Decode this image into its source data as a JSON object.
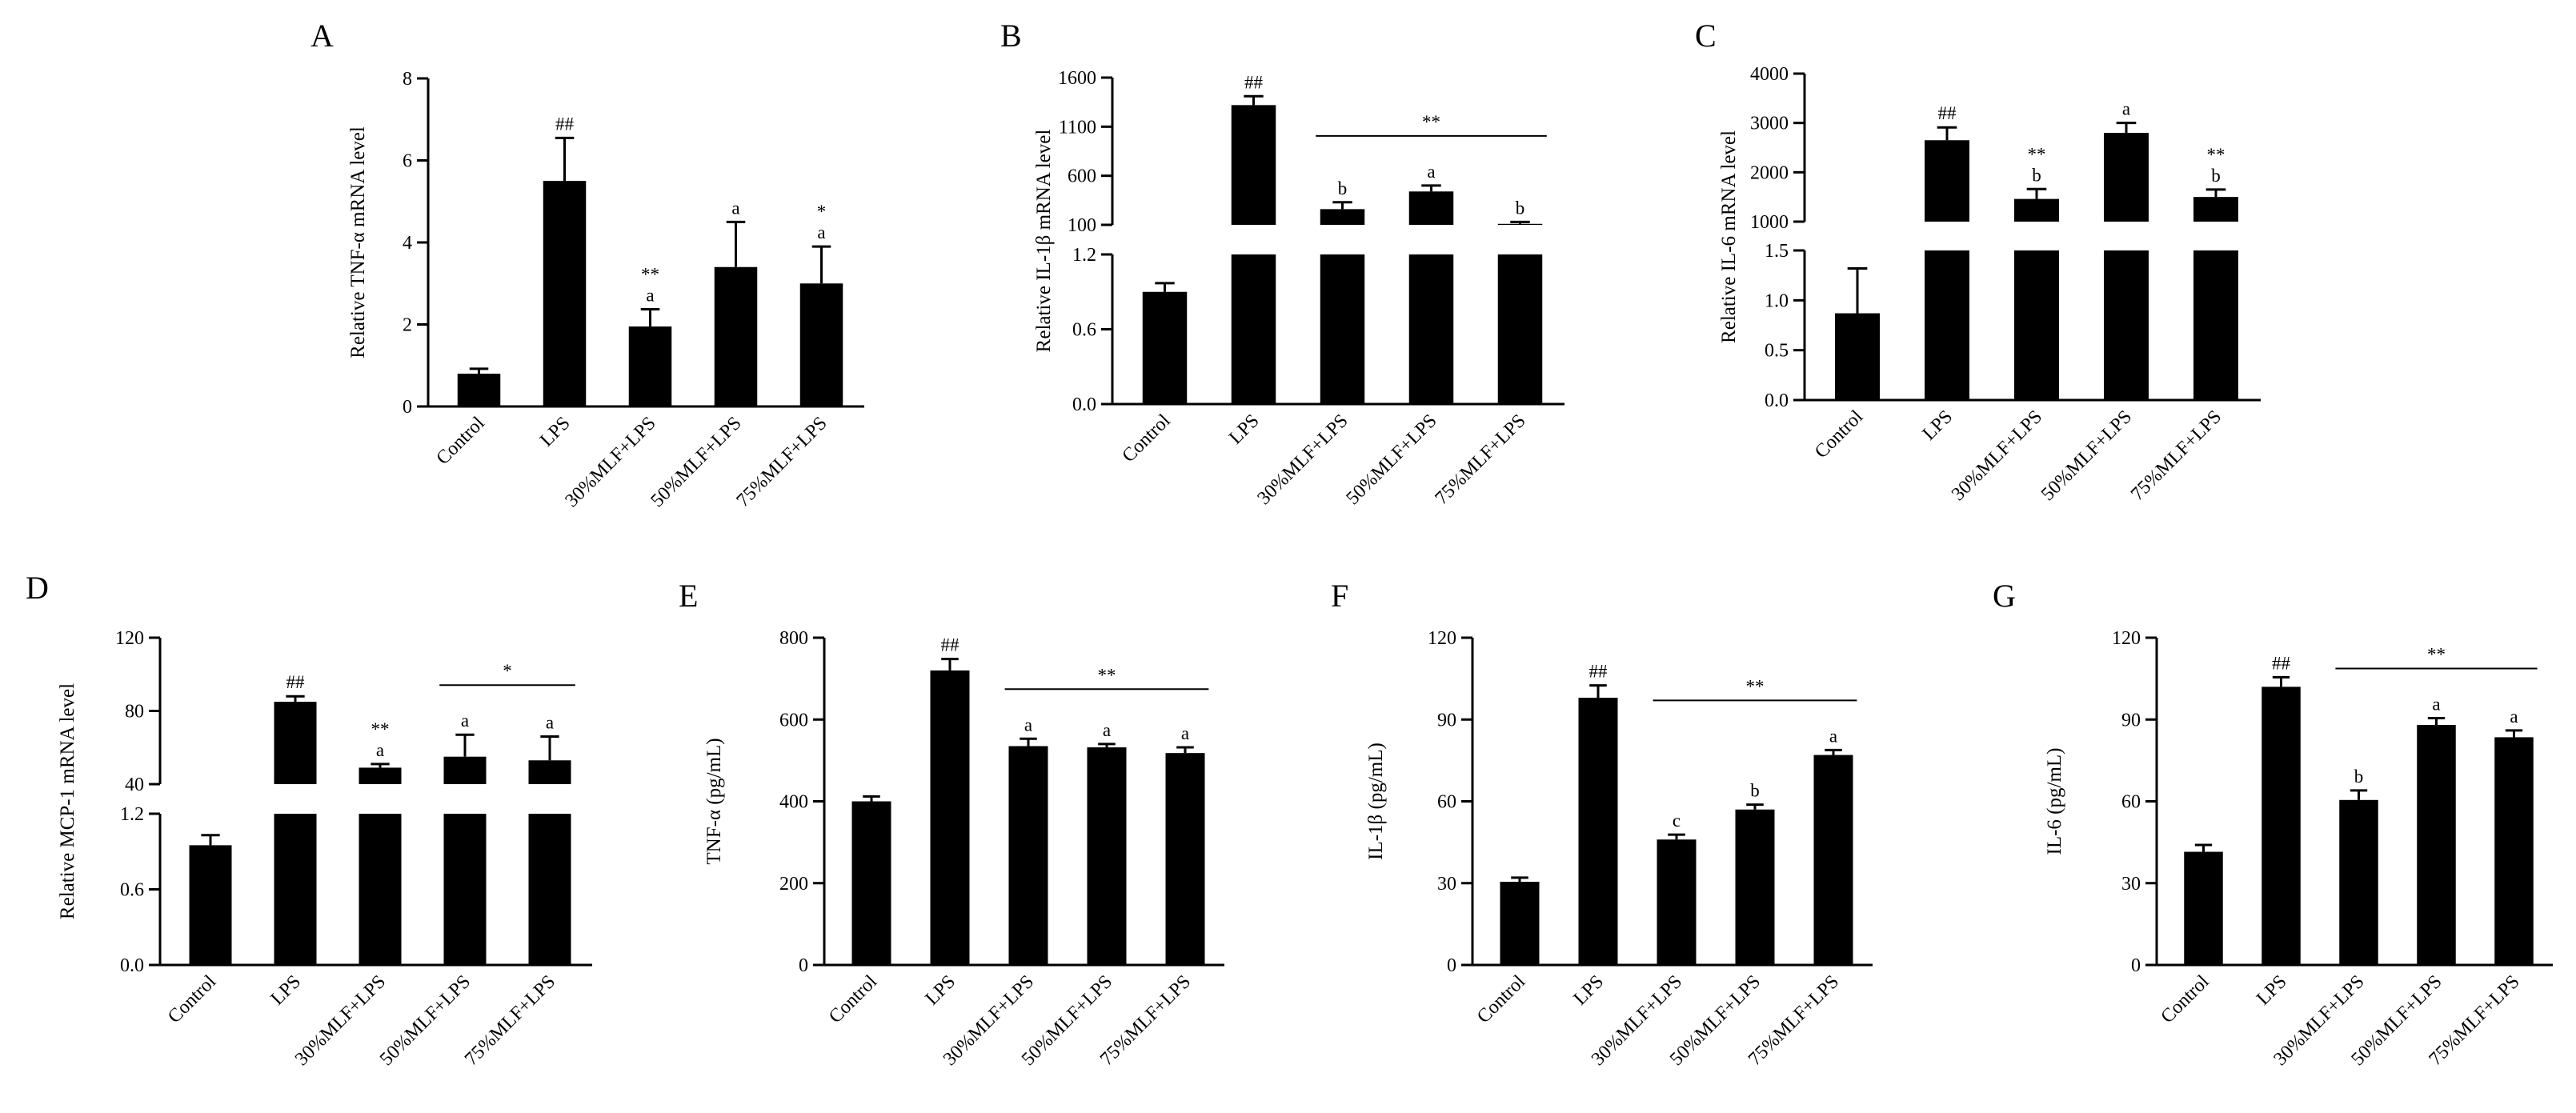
{
  "chart_data": [
    {
      "panel": "A",
      "type": "bar",
      "ylabel": "Relative TNF-α mRNA level",
      "categories": [
        "Control",
        "LPS",
        "30%MLF+LPS",
        "50%MLF+LPS",
        "75%MLF+LPS"
      ],
      "values": [
        0.8,
        5.5,
        1.95,
        3.4,
        3.0
      ],
      "errors": [
        0.12,
        1.05,
        0.42,
        1.1,
        0.9
      ],
      "ylim": [
        0,
        8
      ],
      "yticks": [
        "0",
        "2",
        "4",
        "6",
        "8"
      ],
      "annotations": [
        [
          "",
          ""
        ],
        [
          "##",
          ""
        ],
        [
          "a",
          "**"
        ],
        [
          "a",
          ""
        ],
        [
          "a",
          "*"
        ]
      ],
      "bracket": null
    },
    {
      "panel": "B",
      "type": "bar",
      "broken_axis": true,
      "ylabel": "Relative IL-1β mRNA level",
      "categories": [
        "Control",
        "LPS",
        "30%MLF+LPS",
        "50%MLF+LPS",
        "75%MLF+LPS"
      ],
      "values": [
        0.9,
        1320,
        260,
        440,
        110
      ],
      "errors": [
        0.07,
        90,
        70,
        60,
        20
      ],
      "lower": {
        "ylim": [
          0,
          1.2
        ],
        "yticks": [
          "0.0",
          "0.6",
          "1.2"
        ]
      },
      "upper": {
        "ylim": [
          100,
          1600
        ],
        "yticks": [
          "100",
          "600",
          "1100",
          "1600"
        ]
      },
      "annotations": [
        [
          "",
          ""
        ],
        [
          "##",
          ""
        ],
        [
          "b",
          ""
        ],
        [
          "a",
          ""
        ],
        [
          "b",
          ""
        ]
      ],
      "bracket": {
        "from": 2,
        "to": 4,
        "label": "**"
      }
    },
    {
      "panel": "C",
      "type": "bar",
      "broken_axis": true,
      "ylabel": "Relative IL-6 mRNA level",
      "categories": [
        "Control",
        "LPS",
        "30%MLF+LPS",
        "50%MLF+LPS",
        "75%MLF+LPS"
      ],
      "values": [
        0.87,
        2650,
        1460,
        2800,
        1500
      ],
      "errors": [
        0.45,
        260,
        200,
        200,
        150
      ],
      "lower": {
        "ylim": [
          0,
          1.5
        ],
        "yticks": [
          "0.0",
          "0.5",
          "1.0",
          "1.5"
        ]
      },
      "upper": {
        "ylim": [
          1000,
          4000
        ],
        "yticks": [
          "1000",
          "2000",
          "3000",
          "4000"
        ]
      },
      "annotations": [
        [
          "",
          ""
        ],
        [
          "##",
          ""
        ],
        [
          "b",
          "**"
        ],
        [
          "a",
          ""
        ],
        [
          "b",
          "**"
        ]
      ],
      "bracket": null
    },
    {
      "panel": "D",
      "type": "bar",
      "broken_axis": true,
      "ylabel": "Relative MCP-1 mRNA level",
      "categories": [
        "Control",
        "LPS",
        "30%MLF+LPS",
        "50%MLF+LPS",
        "75%MLF+LPS"
      ],
      "values": [
        0.95,
        85,
        49,
        55,
        53
      ],
      "errors": [
        0.08,
        3,
        2,
        12,
        13
      ],
      "lower": {
        "ylim": [
          0,
          1.2
        ],
        "yticks": [
          "0.0",
          "0.6",
          "1.2"
        ]
      },
      "upper": {
        "ylim": [
          40,
          120
        ],
        "yticks": [
          "40",
          "80",
          "120"
        ]
      },
      "annotations": [
        [
          "",
          ""
        ],
        [
          "##",
          ""
        ],
        [
          "a",
          "**"
        ],
        [
          "a",
          ""
        ],
        [
          "a",
          ""
        ]
      ],
      "bracket": {
        "from": 3,
        "to": 4,
        "label": "*"
      }
    },
    {
      "panel": "E",
      "type": "bar",
      "ylabel": "TNF-α (pg/mL)",
      "categories": [
        "Control",
        "LPS",
        "30%MLF+LPS",
        "50%MLF+LPS",
        "75%MLF+LPS"
      ],
      "values": [
        400,
        720,
        535,
        532,
        518
      ],
      "errors": [
        12,
        28,
        18,
        8,
        14
      ],
      "ylim": [
        0,
        800
      ],
      "yticks": [
        "0",
        "200",
        "400",
        "600",
        "800"
      ],
      "annotations": [
        [
          "",
          ""
        ],
        [
          "##",
          ""
        ],
        [
          "a",
          ""
        ],
        [
          "a",
          ""
        ],
        [
          "a",
          ""
        ]
      ],
      "bracket": {
        "from": 2,
        "to": 4,
        "label": "**"
      }
    },
    {
      "panel": "F",
      "type": "bar",
      "ylabel": "IL-1β (pg/mL)",
      "categories": [
        "Control",
        "LPS",
        "30%MLF+LPS",
        "50%MLF+LPS",
        "75%MLF+LPS"
      ],
      "values": [
        30.5,
        98,
        46,
        57,
        77
      ],
      "errors": [
        1.5,
        4.5,
        1.8,
        1.8,
        1.8
      ],
      "ylim": [
        0,
        120
      ],
      "yticks": [
        "0",
        "30",
        "60",
        "90",
        "120"
      ],
      "annotations": [
        [
          "",
          ""
        ],
        [
          "##",
          ""
        ],
        [
          "c",
          ""
        ],
        [
          "b",
          ""
        ],
        [
          "a",
          ""
        ]
      ],
      "bracket": {
        "from": 2,
        "to": 4,
        "label": "**"
      }
    },
    {
      "panel": "G",
      "type": "bar",
      "ylabel": "IL-6 (pg/mL)",
      "categories": [
        "Control",
        "LPS",
        "30%MLF+LPS",
        "50%MLF+LPS",
        "75%MLF+LPS"
      ],
      "values": [
        41.5,
        102,
        60.5,
        88,
        83.5
      ],
      "errors": [
        2.5,
        3.5,
        3.5,
        2.5,
        2.5
      ],
      "ylim": [
        0,
        120
      ],
      "yticks": [
        "0",
        "30",
        "60",
        "90",
        "120"
      ],
      "annotations": [
        [
          "",
          ""
        ],
        [
          "##",
          ""
        ],
        [
          "b",
          ""
        ],
        [
          "a",
          ""
        ],
        [
          "a",
          ""
        ]
      ],
      "bracket": {
        "from": 2,
        "to": 4,
        "label": "**"
      }
    }
  ]
}
